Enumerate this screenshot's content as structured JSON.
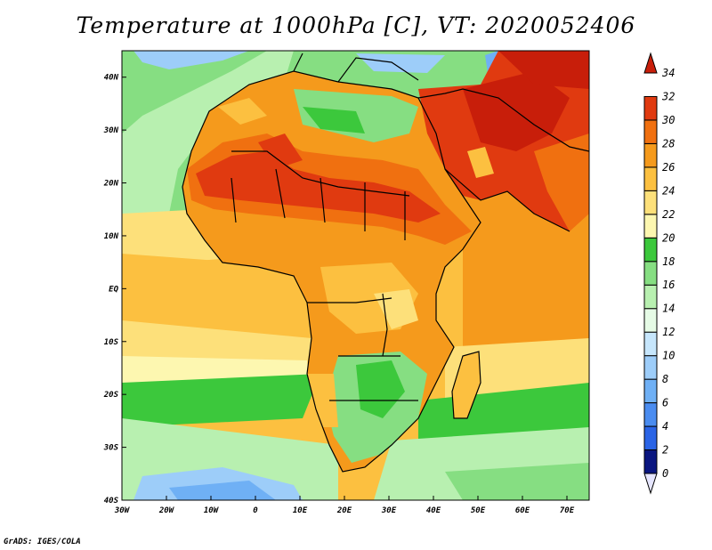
{
  "title": "Temperature at 1000hPa [C], VT: 2020052406",
  "credit": "GrADS: IGES/COLA",
  "map": {
    "lon_range": [
      -30,
      75
    ],
    "lat_range": [
      -40,
      45
    ],
    "x_ticks": [
      {
        "value": -30,
        "label": "30W"
      },
      {
        "value": -20,
        "label": "20W"
      },
      {
        "value": -10,
        "label": "10W"
      },
      {
        "value": 0,
        "label": "0"
      },
      {
        "value": 10,
        "label": "10E"
      },
      {
        "value": 20,
        "label": "20E"
      },
      {
        "value": 30,
        "label": "30E"
      },
      {
        "value": 40,
        "label": "40E"
      },
      {
        "value": 50,
        "label": "50E"
      },
      {
        "value": 60,
        "label": "60E"
      },
      {
        "value": 70,
        "label": "70E"
      }
    ],
    "y_ticks": [
      {
        "value": 40,
        "label": "40N"
      },
      {
        "value": 30,
        "label": "30N"
      },
      {
        "value": 20,
        "label": "20N"
      },
      {
        "value": 10,
        "label": "10N"
      },
      {
        "value": 0,
        "label": "EQ"
      },
      {
        "value": -10,
        "label": "10S"
      },
      {
        "value": -20,
        "label": "20S"
      },
      {
        "value": -30,
        "label": "30S"
      },
      {
        "value": -40,
        "label": "40S"
      }
    ]
  },
  "colorbar": {
    "labels": [
      "0",
      "2",
      "4",
      "6",
      "8",
      "10",
      "12",
      "14",
      "16",
      "18",
      "20",
      "22",
      "24",
      "26",
      "28",
      "30",
      "32",
      "34"
    ],
    "colors": [
      "#0a1680",
      "#1e3cc8",
      "#2a64e6",
      "#4a8cf0",
      "#6fb0f5",
      "#9dcdf9",
      "#c6e6fc",
      "#e6fbe6",
      "#b8f0b0",
      "#86de82",
      "#3cc83c",
      "#fdf7b0",
      "#fde07a",
      "#fcc040",
      "#f59a1c",
      "#f07010",
      "#e03a10",
      "#c81e0a"
    ]
  },
  "colors": {
    "land_outline": "#000000",
    "sea_cool": "#b8f0b0",
    "land_hot": "#e03a10"
  }
}
